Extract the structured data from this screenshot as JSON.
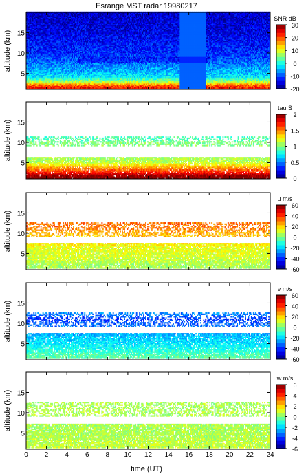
{
  "figure": {
    "title": "Esrange MST radar 19980217",
    "xlabel": "time (UT)"
  },
  "chart_data": [
    {
      "type": "heatmap",
      "title": "Esrange MST radar 19980217",
      "ylabel": "altitude (km)",
      "xlabel": "",
      "xlim": [
        0,
        24
      ],
      "ylim": [
        1,
        20
      ],
      "xticks": [
        0,
        2,
        4,
        6,
        8,
        10,
        12,
        14,
        16,
        18,
        20,
        22,
        24
      ],
      "yticks": [
        5,
        10,
        15
      ],
      "colorbar": {
        "label": "SNR dB",
        "range": [
          -20,
          30
        ],
        "ticks": [
          -20,
          -10,
          0,
          10,
          20,
          30
        ]
      },
      "colormap": "jet",
      "description_of_field": "signal-to-noise ratio, dense coverage at all altitudes",
      "profile": {
        "altitude_km": [
          1,
          2,
          3,
          4,
          6,
          8,
          10,
          12,
          15,
          19
        ],
        "typical_value": [
          25,
          18,
          5,
          -2,
          -6,
          -9,
          -12,
          -13,
          -15,
          -16
        ]
      }
    },
    {
      "type": "heatmap",
      "ylabel": "altitude (km)",
      "xlabel": "",
      "xlim": [
        0,
        24
      ],
      "ylim": [
        1,
        20
      ],
      "xticks": [
        0,
        2,
        4,
        6,
        8,
        10,
        12,
        14,
        16,
        18,
        20,
        22,
        24
      ],
      "yticks": [
        5,
        10,
        15
      ],
      "colorbar": {
        "label": "tau S",
        "range": [
          0,
          2
        ],
        "ticks": [
          0,
          0.5,
          1,
          1.5,
          2
        ]
      },
      "colormap": "jet",
      "description_of_field": "correlation time, echoes in layers near 2-6 km and 9-11 km",
      "profile": {
        "altitude_km": [
          1.5,
          2.5,
          3.5,
          5,
          10,
          10.5
        ],
        "typical_value": [
          2.0,
          1.7,
          1.5,
          1.1,
          1.0,
          0.9
        ]
      }
    },
    {
      "type": "heatmap",
      "ylabel": "altitude (km)",
      "xlabel": "",
      "xlim": [
        0,
        24
      ],
      "ylim": [
        1,
        20
      ],
      "xticks": [
        0,
        2,
        4,
        6,
        8,
        10,
        12,
        14,
        16,
        18,
        20,
        22,
        24
      ],
      "yticks": [
        5,
        10,
        15
      ],
      "colorbar": {
        "label": "u m/s",
        "range": [
          -60,
          60
        ],
        "ticks": [
          -60,
          -40,
          -20,
          0,
          20,
          40,
          60
        ]
      },
      "colormap": "jet",
      "description_of_field": "zonal wind, data between about 1.5 and 13 km",
      "profile": {
        "altitude_km": [
          2,
          4,
          6,
          10,
          11,
          12
        ],
        "typical_value": [
          5,
          10,
          12,
          25,
          30,
          32
        ]
      }
    },
    {
      "type": "heatmap",
      "ylabel": "altitude (km)",
      "xlabel": "",
      "xlim": [
        0,
        24
      ],
      "ylim": [
        1,
        20
      ],
      "xticks": [
        0,
        2,
        4,
        6,
        8,
        10,
        12,
        14,
        16,
        18,
        20,
        22,
        24
      ],
      "yticks": [
        5,
        10,
        15
      ],
      "colorbar": {
        "label": "v m/s",
        "range": [
          -60,
          60
        ],
        "ticks": [
          -60,
          -40,
          -20,
          0,
          20,
          40,
          60
        ]
      },
      "colormap": "jet",
      "description_of_field": "meridional wind, data between about 1.5 and 13 km",
      "profile": {
        "altitude_km": [
          2,
          4,
          6,
          10,
          11,
          12
        ],
        "typical_value": [
          -5,
          -15,
          -20,
          -35,
          -40,
          -30
        ]
      }
    },
    {
      "type": "heatmap",
      "ylabel": "altitude (km)",
      "xlabel": "time (UT)",
      "xlim": [
        0,
        24
      ],
      "ylim": [
        1,
        20
      ],
      "xticks": [
        0,
        2,
        4,
        6,
        8,
        10,
        12,
        14,
        16,
        18,
        20,
        22,
        24
      ],
      "yticks": [
        5,
        10,
        15
      ],
      "colorbar": {
        "label": "w m/s",
        "range": [
          -6,
          6
        ],
        "ticks": [
          -6,
          -4,
          -2,
          0,
          2,
          4,
          6
        ]
      },
      "colormap": "jet",
      "description_of_field": "vertical wind, near zero with data 1.5-7 km and 9-11 km",
      "profile": {
        "altitude_km": [
          2,
          4,
          6,
          10
        ],
        "typical_value": [
          0.8,
          0.6,
          0.5,
          0.5
        ]
      }
    }
  ]
}
